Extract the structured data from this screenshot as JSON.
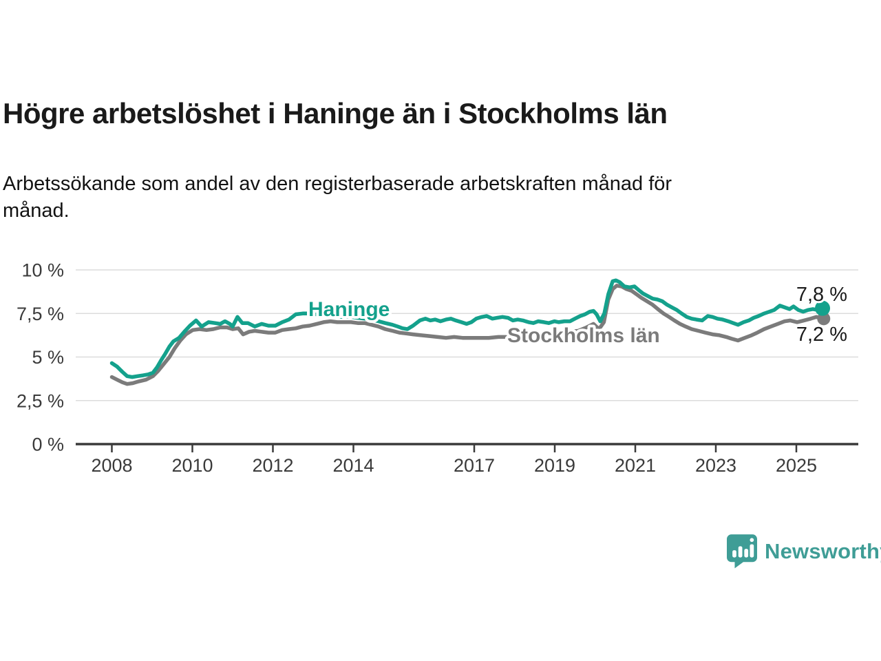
{
  "header": {
    "title": "Högre arbetslöshet i Haninge än i Stockholms län",
    "subtitle": "Arbetssökande som andel av den registerbaserade arbetskraften månad för månad.",
    "subtitle_line1": "Arbetssökande som andel av den registerbaserade arbetskraften månad för",
    "subtitle_line2": "månad."
  },
  "chart_data": {
    "type": "line",
    "x_unit": "decimal_year",
    "xlim": [
      2007.1,
      2026.5
    ],
    "ylim": [
      0,
      10
    ],
    "grid": true,
    "colors": {
      "haninge": "#14a18c",
      "stockholm": "#7b7b7b",
      "gridline": "#dcdcdc",
      "axis": "#3a3a3a"
    },
    "y_ticks": [
      {
        "value": 0,
        "label": "0 %"
      },
      {
        "value": 2.5,
        "label": "2,5 %"
      },
      {
        "value": 5,
        "label": "5 %"
      },
      {
        "value": 7.5,
        "label": "7,5 %"
      },
      {
        "value": 10,
        "label": "10 %"
      }
    ],
    "x_ticks": [
      {
        "value": 2008,
        "label": "2008"
      },
      {
        "value": 2010,
        "label": "2010"
      },
      {
        "value": 2012,
        "label": "2012"
      },
      {
        "value": 2014,
        "label": "2014"
      },
      {
        "value": 2017,
        "label": "2017"
      },
      {
        "value": 2019,
        "label": "2019"
      },
      {
        "value": 2021,
        "label": "2021"
      },
      {
        "value": 2023,
        "label": "2023"
      },
      {
        "value": 2025,
        "label": "2025"
      }
    ],
    "series": [
      {
        "key": "stockholm",
        "name": "Stockholms län",
        "color": "#7b7b7b",
        "end_label": "7,2 %",
        "end_dot_radius": 9.5,
        "points": [
          [
            2008.0,
            3.85
          ],
          [
            2008.13,
            3.7
          ],
          [
            2008.26,
            3.55
          ],
          [
            2008.38,
            3.45
          ],
          [
            2008.52,
            3.5
          ],
          [
            2008.67,
            3.6
          ],
          [
            2008.85,
            3.7
          ],
          [
            2009.02,
            3.9
          ],
          [
            2009.15,
            4.2
          ],
          [
            2009.29,
            4.6
          ],
          [
            2009.43,
            5.0
          ],
          [
            2009.56,
            5.5
          ],
          [
            2009.7,
            5.95
          ],
          [
            2009.84,
            6.3
          ],
          [
            2010.01,
            6.55
          ],
          [
            2010.18,
            6.6
          ],
          [
            2010.35,
            6.55
          ],
          [
            2010.52,
            6.6
          ],
          [
            2010.69,
            6.7
          ],
          [
            2010.86,
            6.7
          ],
          [
            2011.0,
            6.6
          ],
          [
            2011.14,
            6.65
          ],
          [
            2011.26,
            6.3
          ],
          [
            2011.41,
            6.45
          ],
          [
            2011.55,
            6.5
          ],
          [
            2011.72,
            6.45
          ],
          [
            2011.89,
            6.4
          ],
          [
            2012.06,
            6.4
          ],
          [
            2012.23,
            6.55
          ],
          [
            2012.4,
            6.6
          ],
          [
            2012.57,
            6.65
          ],
          [
            2012.74,
            6.75
          ],
          [
            2012.91,
            6.8
          ],
          [
            2013.09,
            6.9
          ],
          [
            2013.26,
            7.0
          ],
          [
            2013.43,
            7.05
          ],
          [
            2013.6,
            7.0
          ],
          [
            2013.77,
            7.0
          ],
          [
            2013.94,
            7.0
          ],
          [
            2014.11,
            6.95
          ],
          [
            2014.28,
            6.95
          ],
          [
            2014.45,
            6.85
          ],
          [
            2014.62,
            6.75
          ],
          [
            2014.79,
            6.6
          ],
          [
            2014.97,
            6.5
          ],
          [
            2015.14,
            6.4
          ],
          [
            2015.31,
            6.35
          ],
          [
            2015.48,
            6.3
          ],
          [
            2015.68,
            6.25
          ],
          [
            2015.89,
            6.2
          ],
          [
            2016.09,
            6.15
          ],
          [
            2016.3,
            6.1
          ],
          [
            2016.5,
            6.15
          ],
          [
            2016.71,
            6.1
          ],
          [
            2016.92,
            6.1
          ],
          [
            2017.12,
            6.1
          ],
          [
            2017.36,
            6.1
          ],
          [
            2017.6,
            6.15
          ],
          [
            2017.82,
            6.15
          ],
          [
            2018.04,
            6.2
          ],
          [
            2018.3,
            6.2
          ],
          [
            2018.56,
            6.25
          ],
          [
            2018.81,
            6.3
          ],
          [
            2019.07,
            6.4
          ],
          [
            2019.33,
            6.45
          ],
          [
            2019.58,
            6.5
          ],
          [
            2019.79,
            6.7
          ],
          [
            2019.96,
            6.9
          ],
          [
            2020.1,
            6.6
          ],
          [
            2020.22,
            7.0
          ],
          [
            2020.33,
            8.3
          ],
          [
            2020.44,
            8.9
          ],
          [
            2020.54,
            9.1
          ],
          [
            2020.66,
            9.05
          ],
          [
            2020.78,
            8.9
          ],
          [
            2020.91,
            8.8
          ],
          [
            2021.03,
            8.6
          ],
          [
            2021.15,
            8.4
          ],
          [
            2021.29,
            8.2
          ],
          [
            2021.43,
            8.0
          ],
          [
            2021.56,
            7.75
          ],
          [
            2021.7,
            7.5
          ],
          [
            2021.84,
            7.3
          ],
          [
            2021.97,
            7.1
          ],
          [
            2022.11,
            6.9
          ],
          [
            2022.25,
            6.75
          ],
          [
            2022.4,
            6.6
          ],
          [
            2022.57,
            6.5
          ],
          [
            2022.74,
            6.4
          ],
          [
            2022.92,
            6.3
          ],
          [
            2023.09,
            6.25
          ],
          [
            2023.26,
            6.15
          ],
          [
            2023.39,
            6.05
          ],
          [
            2023.55,
            5.95
          ],
          [
            2023.72,
            6.1
          ],
          [
            2023.89,
            6.25
          ],
          [
            2024.03,
            6.4
          ],
          [
            2024.2,
            6.6
          ],
          [
            2024.37,
            6.75
          ],
          [
            2024.54,
            6.9
          ],
          [
            2024.71,
            7.05
          ],
          [
            2024.85,
            7.1
          ],
          [
            2025.02,
            7.0
          ],
          [
            2025.19,
            7.1
          ],
          [
            2025.36,
            7.2
          ],
          [
            2025.5,
            7.3
          ],
          [
            2025.6,
            7.25
          ],
          [
            2025.68,
            7.2
          ]
        ]
      },
      {
        "key": "haninge",
        "name": "Haninge",
        "color": "#14a18c",
        "end_label": "7,8 %",
        "end_dot_radius": 11,
        "points": [
          [
            2008.0,
            4.65
          ],
          [
            2008.13,
            4.45
          ],
          [
            2008.26,
            4.15
          ],
          [
            2008.38,
            3.9
          ],
          [
            2008.5,
            3.85
          ],
          [
            2008.64,
            3.9
          ],
          [
            2008.78,
            3.95
          ],
          [
            2008.9,
            4.0
          ],
          [
            2009.02,
            4.1
          ],
          [
            2009.12,
            4.4
          ],
          [
            2009.22,
            4.8
          ],
          [
            2009.33,
            5.2
          ],
          [
            2009.43,
            5.6
          ],
          [
            2009.53,
            5.9
          ],
          [
            2009.67,
            6.1
          ],
          [
            2009.8,
            6.45
          ],
          [
            2009.94,
            6.8
          ],
          [
            2010.09,
            7.1
          ],
          [
            2010.23,
            6.75
          ],
          [
            2010.4,
            7.0
          ],
          [
            2010.56,
            6.95
          ],
          [
            2010.69,
            6.9
          ],
          [
            2010.81,
            7.05
          ],
          [
            2010.93,
            6.9
          ],
          [
            2011.0,
            6.75
          ],
          [
            2011.12,
            7.3
          ],
          [
            2011.24,
            6.95
          ],
          [
            2011.38,
            6.95
          ],
          [
            2011.55,
            6.75
          ],
          [
            2011.72,
            6.9
          ],
          [
            2011.89,
            6.8
          ],
          [
            2012.06,
            6.8
          ],
          [
            2012.23,
            7.0
          ],
          [
            2012.4,
            7.15
          ],
          [
            2012.57,
            7.45
          ],
          [
            2012.74,
            7.5
          ],
          [
            2012.91,
            7.5
          ],
          [
            2013.09,
            7.45
          ],
          [
            2013.26,
            7.4
          ],
          [
            2013.43,
            7.35
          ],
          [
            2013.6,
            7.3
          ],
          [
            2013.77,
            7.3
          ],
          [
            2013.94,
            7.3
          ],
          [
            2014.11,
            7.25
          ],
          [
            2014.28,
            7.2
          ],
          [
            2014.45,
            7.15
          ],
          [
            2014.62,
            7.05
          ],
          [
            2014.79,
            6.95
          ],
          [
            2014.97,
            6.85
          ],
          [
            2015.1,
            6.75
          ],
          [
            2015.22,
            6.65
          ],
          [
            2015.34,
            6.6
          ],
          [
            2015.48,
            6.8
          ],
          [
            2015.65,
            7.1
          ],
          [
            2015.79,
            7.2
          ],
          [
            2015.91,
            7.1
          ],
          [
            2016.03,
            7.15
          ],
          [
            2016.16,
            7.05
          ],
          [
            2016.3,
            7.15
          ],
          [
            2016.42,
            7.2
          ],
          [
            2016.54,
            7.1
          ],
          [
            2016.68,
            7.0
          ],
          [
            2016.81,
            6.9
          ],
          [
            2016.93,
            7.0
          ],
          [
            2017.05,
            7.2
          ],
          [
            2017.19,
            7.3
          ],
          [
            2017.31,
            7.35
          ],
          [
            2017.45,
            7.2
          ],
          [
            2017.57,
            7.25
          ],
          [
            2017.7,
            7.3
          ],
          [
            2017.84,
            7.25
          ],
          [
            2017.96,
            7.1
          ],
          [
            2018.08,
            7.15
          ],
          [
            2018.21,
            7.1
          ],
          [
            2018.35,
            7.0
          ],
          [
            2018.47,
            6.95
          ],
          [
            2018.59,
            7.05
          ],
          [
            2018.73,
            7.0
          ],
          [
            2018.85,
            6.95
          ],
          [
            2018.99,
            7.05
          ],
          [
            2019.1,
            7.0
          ],
          [
            2019.24,
            7.05
          ],
          [
            2019.38,
            7.05
          ],
          [
            2019.5,
            7.2
          ],
          [
            2019.63,
            7.35
          ],
          [
            2019.75,
            7.45
          ],
          [
            2019.87,
            7.6
          ],
          [
            2019.96,
            7.65
          ],
          [
            2020.04,
            7.45
          ],
          [
            2020.13,
            7.05
          ],
          [
            2020.23,
            7.5
          ],
          [
            2020.33,
            8.6
          ],
          [
            2020.44,
            9.35
          ],
          [
            2020.52,
            9.4
          ],
          [
            2020.61,
            9.3
          ],
          [
            2020.73,
            9.05
          ],
          [
            2020.86,
            9.0
          ],
          [
            2020.98,
            9.05
          ],
          [
            2021.08,
            8.85
          ],
          [
            2021.19,
            8.65
          ],
          [
            2021.31,
            8.5
          ],
          [
            2021.43,
            8.35
          ],
          [
            2021.55,
            8.3
          ],
          [
            2021.67,
            8.2
          ],
          [
            2021.79,
            8.0
          ],
          [
            2021.91,
            7.85
          ],
          [
            2022.03,
            7.7
          ],
          [
            2022.15,
            7.5
          ],
          [
            2022.28,
            7.3
          ],
          [
            2022.4,
            7.2
          ],
          [
            2022.52,
            7.15
          ],
          [
            2022.66,
            7.1
          ],
          [
            2022.8,
            7.35
          ],
          [
            2022.92,
            7.3
          ],
          [
            2023.04,
            7.2
          ],
          [
            2023.17,
            7.15
          ],
          [
            2023.31,
            7.05
          ],
          [
            2023.43,
            6.95
          ],
          [
            2023.55,
            6.85
          ],
          [
            2023.69,
            7.0
          ],
          [
            2023.82,
            7.1
          ],
          [
            2023.94,
            7.25
          ],
          [
            2024.06,
            7.35
          ],
          [
            2024.2,
            7.5
          ],
          [
            2024.33,
            7.6
          ],
          [
            2024.45,
            7.7
          ],
          [
            2024.59,
            7.95
          ],
          [
            2024.71,
            7.85
          ],
          [
            2024.83,
            7.75
          ],
          [
            2024.93,
            7.9
          ],
          [
            2025.05,
            7.7
          ],
          [
            2025.17,
            7.6
          ],
          [
            2025.29,
            7.7
          ],
          [
            2025.41,
            7.75
          ],
          [
            2025.53,
            7.7
          ],
          [
            2025.65,
            7.8
          ]
        ]
      }
    ]
  },
  "branding": {
    "logo_text": "Newsworthy",
    "logo_color": "#3f9d96"
  }
}
